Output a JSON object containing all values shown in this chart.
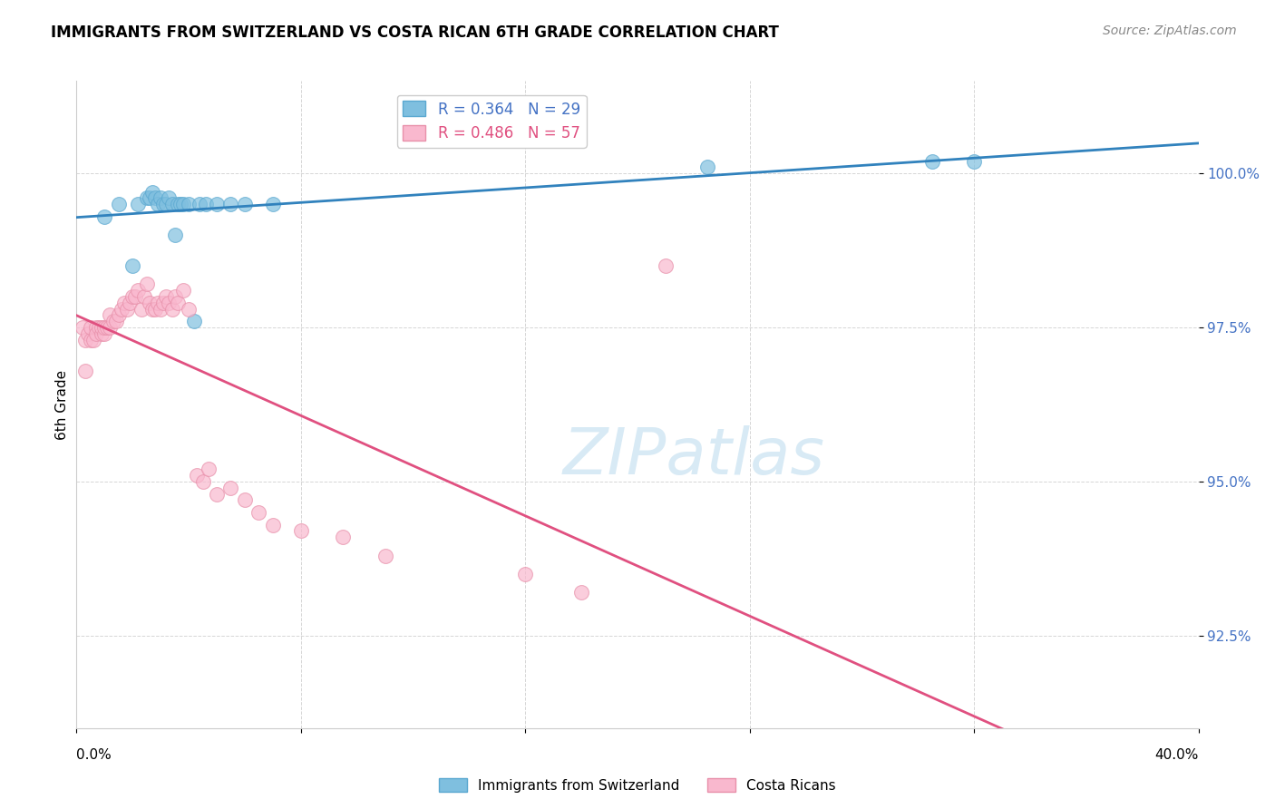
{
  "title": "IMMIGRANTS FROM SWITZERLAND VS COSTA RICAN 6TH GRADE CORRELATION CHART",
  "source": "Source: ZipAtlas.com",
  "ylabel": "6th Grade",
  "xlim": [
    0.0,
    40.0
  ],
  "ylim": [
    91.0,
    101.5
  ],
  "y_ticks": [
    92.5,
    95.0,
    97.5,
    100.0
  ],
  "y_tick_labels": [
    "92.5%",
    "95.0%",
    "97.5%",
    "100.0%"
  ],
  "legend_blue_label": "R = 0.364   N = 29",
  "legend_pink_label": "R = 0.486   N = 57",
  "blue_color": "#7fbfdf",
  "blue_edge_color": "#5aa8d0",
  "pink_color": "#f9b8ce",
  "pink_edge_color": "#e890aa",
  "blue_line_color": "#3182bd",
  "pink_line_color": "#e05080",
  "blue_text_color": "#4472c4",
  "pink_text_color": "#e05080",
  "ytick_color": "#4472c4",
  "watermark_text": "ZIPatlas",
  "watermark_color": "#d8eaf5",
  "bottom_legend_blue": "Immigrants from Switzerland",
  "bottom_legend_pink": "Costa Ricans",
  "blue_x": [
    1.0,
    1.5,
    2.0,
    2.2,
    2.5,
    2.6,
    2.7,
    2.8,
    2.9,
    3.0,
    3.1,
    3.2,
    3.3,
    3.4,
    3.5,
    3.6,
    3.7,
    3.8,
    4.0,
    4.2,
    4.4,
    4.6,
    5.0,
    5.5,
    6.0,
    7.0,
    22.5,
    30.5,
    32.0
  ],
  "blue_y": [
    99.3,
    99.5,
    98.5,
    99.5,
    99.6,
    99.6,
    99.7,
    99.6,
    99.5,
    99.6,
    99.5,
    99.5,
    99.6,
    99.5,
    99.0,
    99.5,
    99.5,
    99.5,
    99.5,
    97.6,
    99.5,
    99.5,
    99.5,
    99.5,
    99.5,
    99.5,
    100.1,
    100.2,
    100.2
  ],
  "pink_x": [
    0.2,
    0.3,
    0.4,
    0.5,
    0.5,
    0.6,
    0.7,
    0.7,
    0.8,
    0.9,
    0.9,
    1.0,
    1.0,
    1.1,
    1.2,
    1.2,
    1.3,
    1.4,
    1.5,
    1.6,
    1.7,
    1.8,
    1.9,
    2.0,
    2.1,
    2.2,
    2.3,
    2.4,
    2.5,
    2.6,
    2.7,
    2.8,
    2.9,
    3.0,
    3.1,
    3.2,
    3.3,
    3.4,
    3.5,
    3.6,
    3.8,
    4.0,
    4.3,
    4.5,
    4.7,
    5.0,
    5.5,
    6.0,
    6.5,
    7.0,
    8.0,
    9.5,
    11.0,
    16.0,
    18.0,
    21.0,
    0.3
  ],
  "pink_y": [
    97.5,
    97.3,
    97.4,
    97.3,
    97.5,
    97.3,
    97.5,
    97.4,
    97.5,
    97.4,
    97.5,
    97.4,
    97.5,
    97.5,
    97.5,
    97.7,
    97.6,
    97.6,
    97.7,
    97.8,
    97.9,
    97.8,
    97.9,
    98.0,
    98.0,
    98.1,
    97.8,
    98.0,
    98.2,
    97.9,
    97.8,
    97.8,
    97.9,
    97.8,
    97.9,
    98.0,
    97.9,
    97.8,
    98.0,
    97.9,
    98.1,
    97.8,
    95.1,
    95.0,
    95.2,
    94.8,
    94.9,
    94.7,
    94.5,
    94.3,
    94.2,
    94.1,
    93.8,
    93.5,
    93.2,
    98.5,
    96.8
  ]
}
